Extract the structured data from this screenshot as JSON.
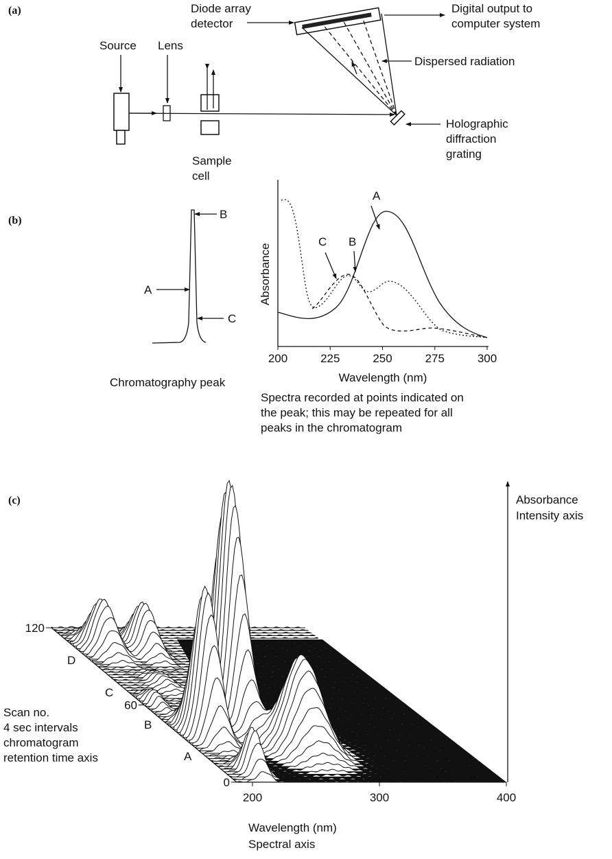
{
  "panel_a": {
    "label": "(a)",
    "diode_array_detector": [
      "Diode array",
      "detector"
    ],
    "digital_output": [
      "Digital output to",
      "computer system"
    ],
    "dispersed_radiation": "Dispersed radiation",
    "source": "Source",
    "lens": "Lens",
    "sample_cell": [
      "Sample",
      "cell"
    ],
    "grating": [
      "Holographic",
      "diffraction",
      "grating"
    ]
  },
  "panel_b": {
    "label": "(b)",
    "peak": {
      "labels": [
        "A",
        "B",
        "C"
      ],
      "caption": "Chromatography peak"
    },
    "spectrum": {
      "y_label": "Absorbance",
      "x_label": "Wavelength (nm)",
      "xticks": [
        200,
        225,
        250,
        275,
        300
      ],
      "curve_labels": [
        "A",
        "B",
        "C"
      ],
      "caption": [
        "Spectra recorded at points indicated on",
        "the peak; this may be repeated for all",
        "peaks in the chromatogram"
      ]
    }
  },
  "panel_c": {
    "label": "(c)",
    "z_label": [
      "Absorbance",
      "Intensity axis"
    ],
    "scan_ticks": [
      0,
      60,
      120
    ],
    "scan_letters": [
      "A",
      "B",
      "C",
      "D"
    ],
    "scan_label": [
      "Scan no.",
      "4 sec intervals",
      "chromatogram",
      "retention time axis"
    ],
    "wavelength_ticks": [
      200,
      300,
      400
    ],
    "x_label": [
      "Wavelength (nm)",
      "Spectral axis"
    ]
  }
}
